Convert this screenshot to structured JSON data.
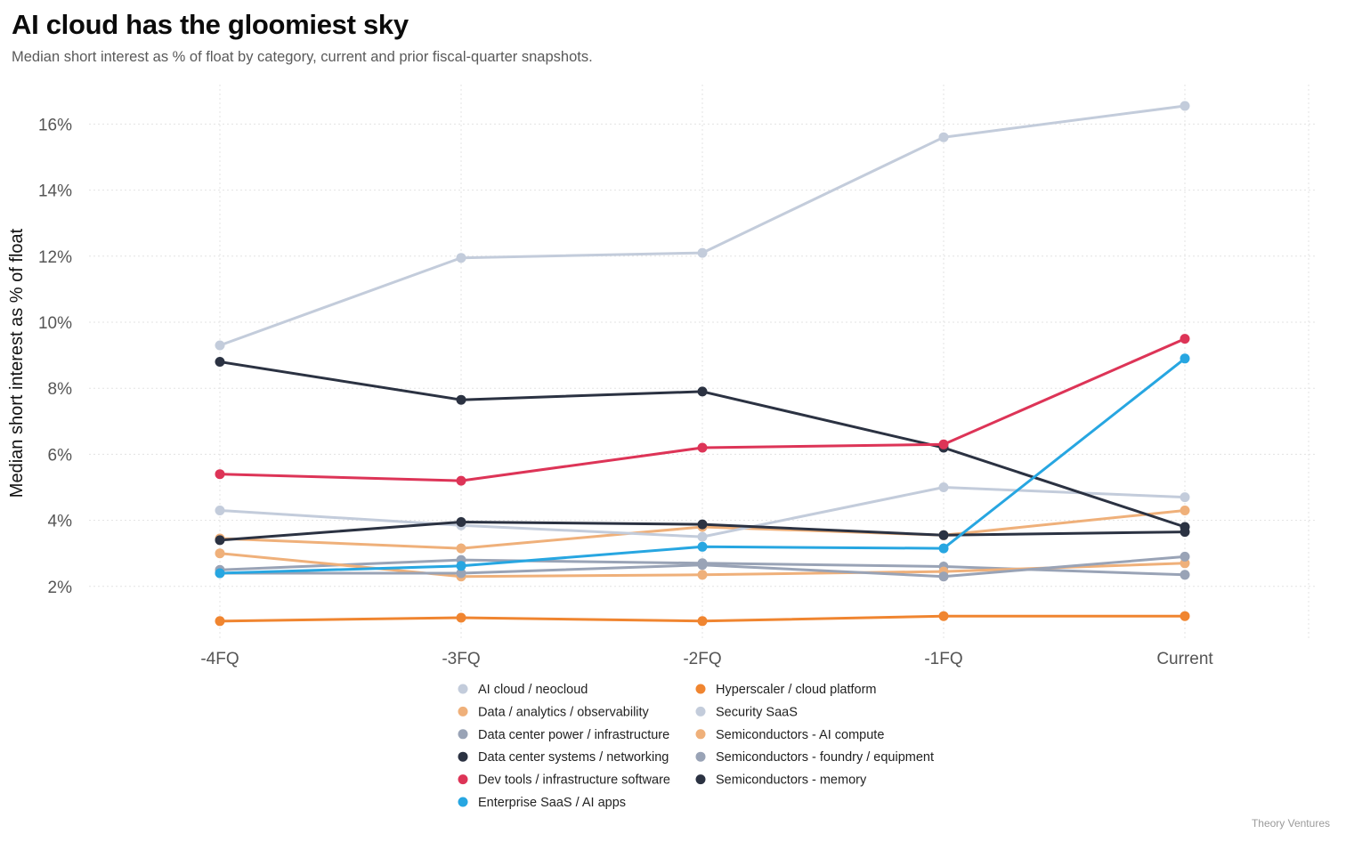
{
  "title": "AI cloud has the gloomiest sky",
  "subtitle": "Median short interest as % of float by category, current and prior fiscal-quarter snapshots.",
  "credit": "Theory Ventures",
  "chart_data": {
    "type": "line",
    "title": "AI cloud has the gloomiest sky",
    "ylabel": "Median short interest as % of float",
    "xlabel": "",
    "x": [
      "-4FQ",
      "-3FQ",
      "-2FQ",
      "-1FQ",
      "Current"
    ],
    "yticks": [
      "2%",
      "4%",
      "6%",
      "8%",
      "10%",
      "12%",
      "14%",
      "16%"
    ],
    "ylim": [
      0.5,
      17
    ],
    "grid": true,
    "legend_position": "bottom",
    "series": [
      {
        "name": "AI cloud / neocloud",
        "color": "#c3ccdb",
        "values": [
          9.3,
          11.95,
          12.1,
          15.6,
          16.55
        ]
      },
      {
        "name": "Hyperscaler / cloud platform",
        "color": "#f08530",
        "values": [
          0.95,
          1.05,
          0.95,
          1.1,
          1.1
        ]
      },
      {
        "name": "Data / analytics / observability",
        "color": "#efb07a",
        "values": [
          3.45,
          3.15,
          3.8,
          3.55,
          4.3
        ]
      },
      {
        "name": "Security SaaS",
        "color": "#c3ccdb",
        "values": [
          4.3,
          3.85,
          3.5,
          5.0,
          4.7
        ]
      },
      {
        "name": "Data center power / infrastructure",
        "color": "#99a3b6",
        "values": [
          2.5,
          2.8,
          2.7,
          2.6,
          2.35
        ]
      },
      {
        "name": "Semiconductors - AI compute",
        "color": "#efb07a",
        "values": [
          3.0,
          2.3,
          2.35,
          2.45,
          2.7
        ]
      },
      {
        "name": "Data center systems / networking",
        "color": "#2b3242",
        "values": [
          8.8,
          7.65,
          7.9,
          6.2,
          3.8
        ]
      },
      {
        "name": "Semiconductors - foundry / equipment",
        "color": "#99a3b6",
        "values": [
          2.4,
          2.4,
          2.65,
          2.3,
          2.9
        ]
      },
      {
        "name": "Dev tools / infrastructure software",
        "color": "#dd3457",
        "values": [
          5.4,
          5.2,
          6.2,
          6.3,
          9.5
        ]
      },
      {
        "name": "Semiconductors - memory",
        "color": "#2b3242",
        "values": [
          3.4,
          3.95,
          3.88,
          3.55,
          3.65
        ]
      },
      {
        "name": "Enterprise SaaS / AI apps",
        "color": "#27a6e1",
        "values": [
          2.4,
          2.62,
          3.2,
          3.15,
          8.9
        ]
      }
    ]
  }
}
